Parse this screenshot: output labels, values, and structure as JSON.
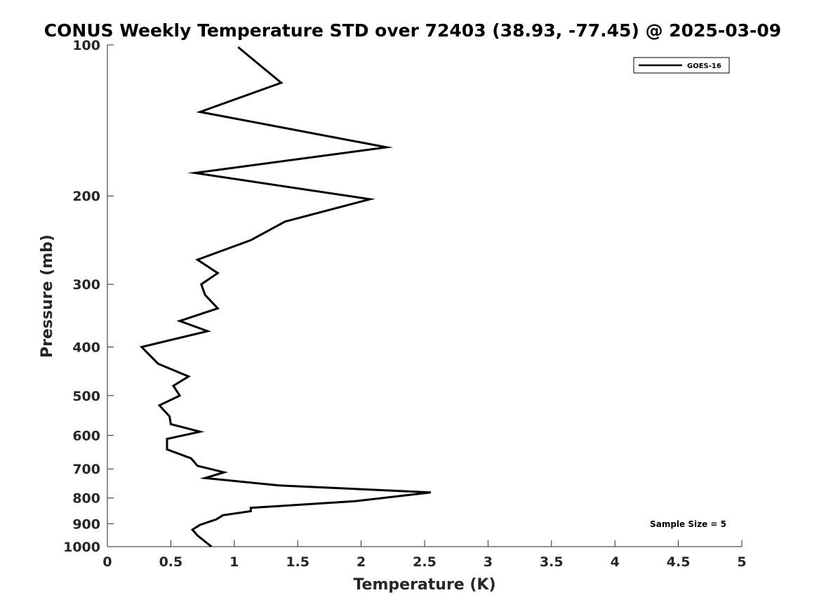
{
  "chart_data": {
    "type": "line",
    "title": "CONUS Weekly Temperature STD over 72403 (38.93, -77.45) @ 2025-03-09",
    "xlabel": "Temperature (K)",
    "ylabel": "Pressure (mb)",
    "xlim": [
      0,
      5
    ],
    "ylim": [
      1000,
      100
    ],
    "y_scale": "log",
    "y_direction": "reversed",
    "grid": false,
    "legend_position": "top-right",
    "x_ticks": [
      0,
      0.5,
      1,
      1.5,
      2,
      2.5,
      3,
      3.5,
      4,
      4.5,
      5
    ],
    "x_tick_labels": [
      "0",
      "0.5",
      "1",
      "1.5",
      "2",
      "2.5",
      "3",
      "3.5",
      "4",
      "4.5",
      "5"
    ],
    "y_ticks": [
      100,
      200,
      300,
      400,
      500,
      600,
      700,
      800,
      900,
      1000
    ],
    "y_tick_labels": [
      "100",
      "200",
      "300",
      "400",
      "500",
      "600",
      "700",
      "800",
      "900",
      "1000"
    ],
    "annotation": "Sample Size = 5",
    "series": [
      {
        "name": "GOES-16",
        "color": "#000000",
        "x": [
          1.03,
          1.37,
          0.73,
          2.2,
          0.69,
          2.07,
          1.4,
          1.13,
          0.71,
          0.87,
          0.74,
          0.77,
          0.87,
          0.57,
          0.79,
          0.27,
          0.4,
          0.64,
          0.52,
          0.57,
          0.41,
          0.49,
          0.5,
          0.73,
          0.47,
          0.47,
          0.66,
          0.71,
          0.92,
          0.77,
          1.35,
          2.55,
          1.95,
          1.13,
          1.13,
          0.91,
          0.86,
          0.73,
          0.67,
          0.71,
          0.82
        ],
        "y": [
          101,
          119,
          136,
          160,
          180,
          203,
          225,
          245,
          268,
          285,
          300,
          315,
          335,
          355,
          372,
          400,
          432,
          458,
          478,
          500,
          523,
          550,
          570,
          590,
          610,
          640,
          667,
          690,
          711,
          730,
          755,
          780,
          812,
          837,
          850,
          866,
          882,
          905,
          925,
          950,
          1000
        ]
      }
    ]
  }
}
